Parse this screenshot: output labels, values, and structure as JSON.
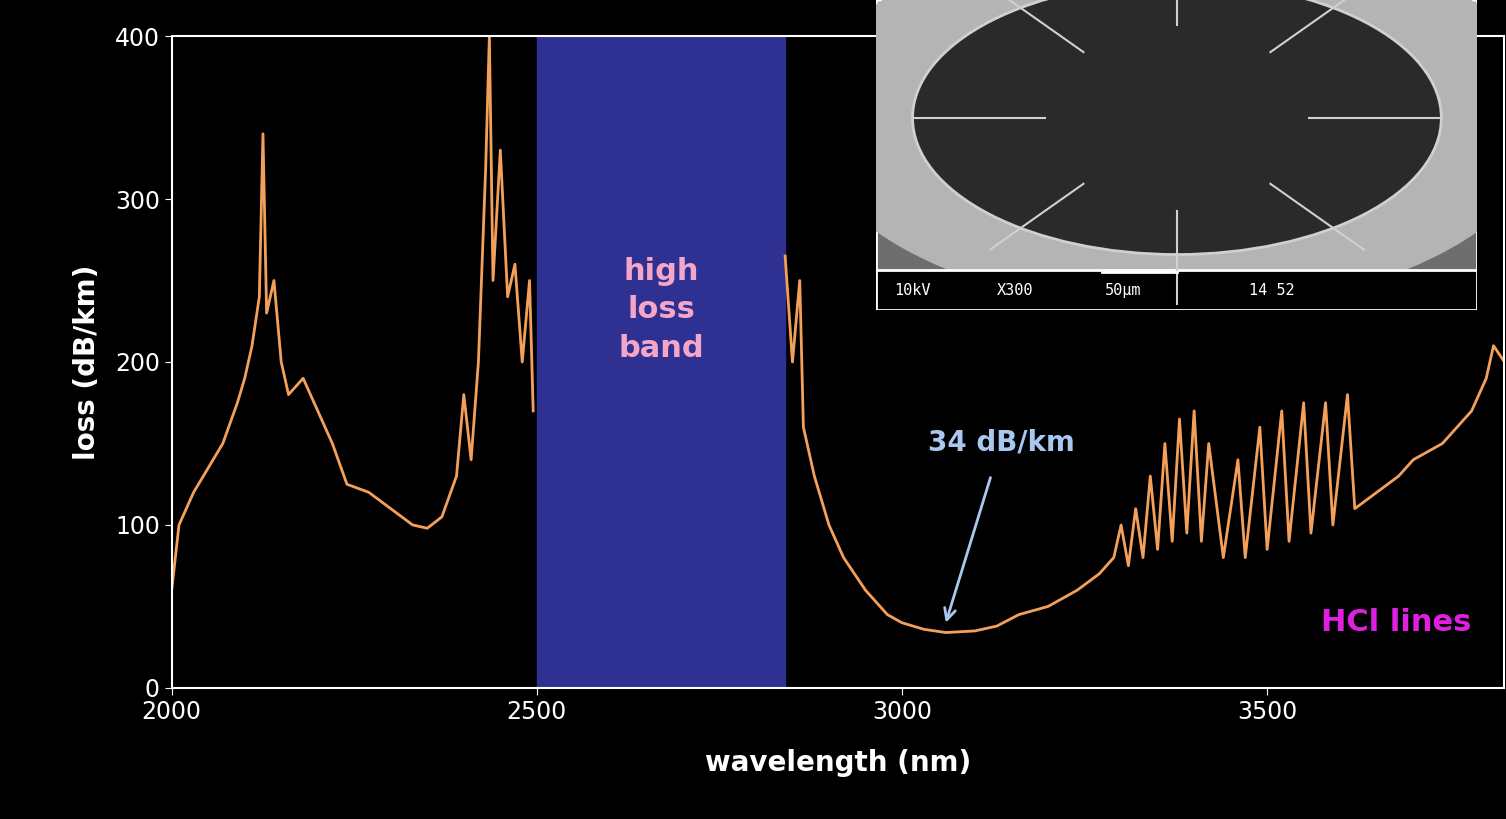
{
  "chart_data": {
    "type": "line",
    "x_label": "wavelength (nm)",
    "y_label": "loss (dB/km)",
    "xlim": [
      2000,
      3825
    ],
    "ylim": [
      0,
      400
    ],
    "xticks": [
      2000,
      2500,
      3000,
      3500
    ],
    "yticks": [
      0,
      100,
      200,
      300,
      400
    ],
    "color": "#f5a05a",
    "band": {
      "from": 2500,
      "to": 2840,
      "label": "high\nloss\nband",
      "color": "#2e3192"
    },
    "annotations": [
      {
        "text": "34 dB/km",
        "x": 3060,
        "y": 34
      }
    ],
    "note": "HCl lines",
    "inset_labels": [
      "10kV",
      "X300",
      "50µm",
      "14 52"
    ],
    "x": [
      2000,
      2010,
      2030,
      2050,
      2070,
      2090,
      2100,
      2110,
      2120,
      2125,
      2130,
      2140,
      2150,
      2160,
      2180,
      2200,
      2220,
      2240,
      2270,
      2300,
      2330,
      2350,
      2370,
      2390,
      2400,
      2410,
      2420,
      2430,
      2435,
      2440,
      2450,
      2460,
      2470,
      2480,
      2490,
      2495,
      2500,
      2840,
      2850,
      2860,
      2865,
      2880,
      2900,
      2920,
      2950,
      2980,
      3000,
      3030,
      3060,
      3100,
      3130,
      3160,
      3200,
      3240,
      3270,
      3290,
      3300,
      3310,
      3320,
      3330,
      3340,
      3350,
      3360,
      3370,
      3380,
      3390,
      3400,
      3410,
      3420,
      3440,
      3460,
      3470,
      3490,
      3500,
      3520,
      3530,
      3550,
      3560,
      3580,
      3590,
      3610,
      3620,
      3650,
      3680,
      3700,
      3720,
      3740,
      3760,
      3780,
      3800,
      3810,
      3825
    ],
    "values": [
      60,
      100,
      120,
      135,
      150,
      175,
      190,
      210,
      240,
      340,
      230,
      250,
      200,
      180,
      190,
      170,
      150,
      125,
      120,
      110,
      100,
      98,
      105,
      130,
      180,
      140,
      200,
      320,
      400,
      250,
      330,
      240,
      260,
      200,
      250,
      170,
      null,
      265,
      200,
      250,
      160,
      130,
      100,
      80,
      60,
      45,
      40,
      36,
      34,
      35,
      38,
      45,
      50,
      60,
      70,
      80,
      100,
      75,
      110,
      80,
      130,
      85,
      150,
      90,
      165,
      95,
      170,
      90,
      150,
      80,
      140,
      80,
      160,
      85,
      170,
      90,
      175,
      95,
      175,
      100,
      180,
      110,
      120,
      130,
      140,
      145,
      150,
      160,
      170,
      190,
      210,
      200
    ]
  }
}
